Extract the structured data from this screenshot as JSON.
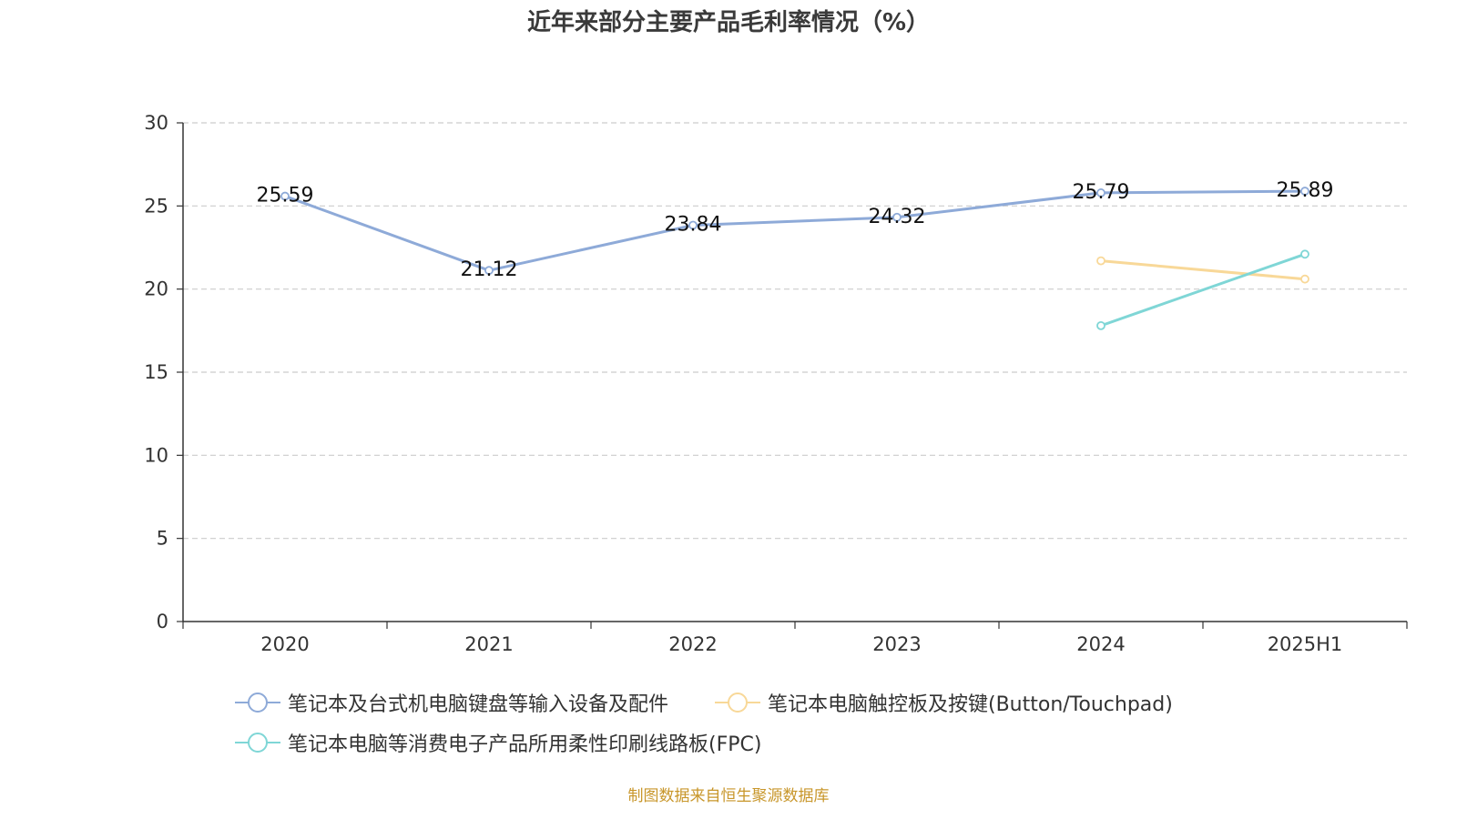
{
  "title": "近年来部分主要产品毛利率情况（%）",
  "source": "制图数据来自恒生聚源数据库",
  "chart_data": {
    "type": "line",
    "title": "近年来部分主要产品毛利率情况（%）",
    "categories": [
      "2020",
      "2021",
      "2022",
      "2023",
      "2024",
      "2025H1"
    ],
    "ylim": [
      0,
      30
    ],
    "yticks": [
      0,
      5,
      10,
      15,
      20,
      25,
      30
    ],
    "grid": true,
    "legend_position": "bottom",
    "series": [
      {
        "name": "笔记本及台式机电脑键盘等输入设备及配件",
        "color": "#8eaad8",
        "values": [
          25.59,
          21.12,
          23.84,
          24.32,
          25.79,
          25.89
        ],
        "labels": [
          "25.59",
          "21.12",
          "23.84",
          "24.32",
          "25.79",
          "25.89"
        ]
      },
      {
        "name": "笔记本电脑触控板及按键(Button/Touchpad)",
        "color": "#f8d898",
        "values": [
          null,
          null,
          null,
          null,
          21.7,
          20.6
        ],
        "labels": []
      },
      {
        "name": "笔记本电脑等消费电子产品所用柔性印刷线路板(FPC)",
        "color": "#7fd6d6",
        "values": [
          null,
          null,
          null,
          null,
          17.8,
          22.1
        ],
        "labels": []
      }
    ]
  }
}
